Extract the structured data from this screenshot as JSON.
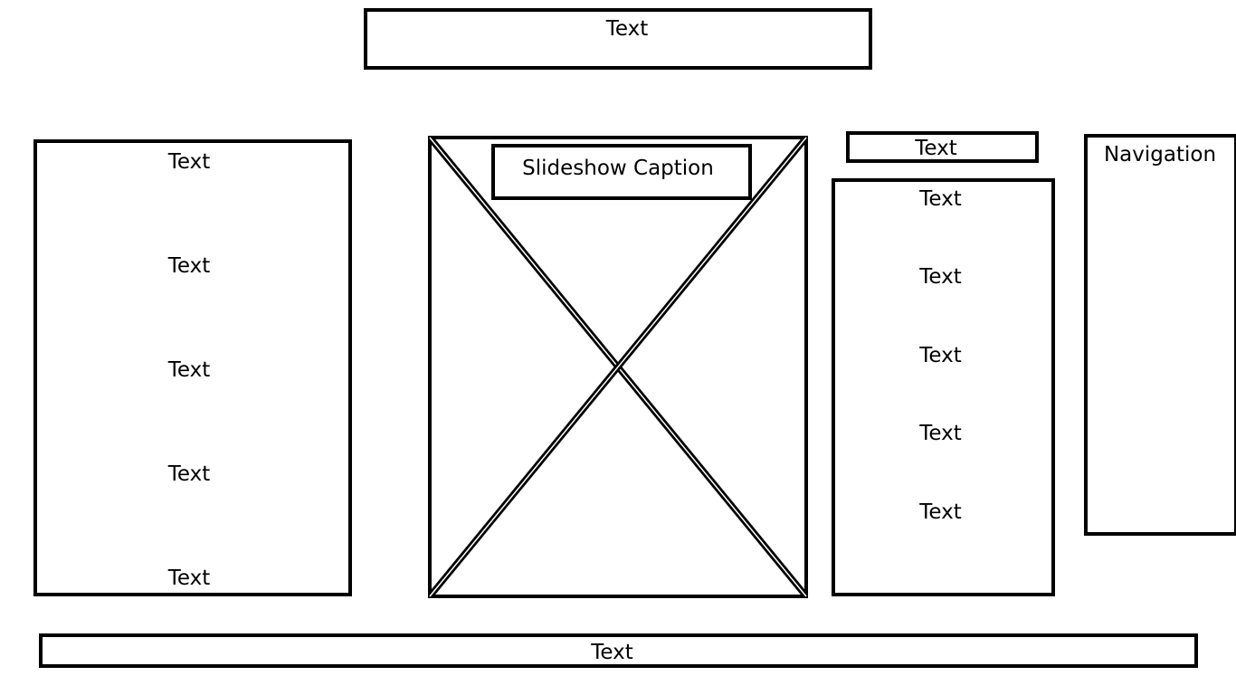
{
  "header": {
    "text": "Text"
  },
  "left_panel": {
    "items": [
      "Text",
      "Text",
      "Text",
      "Text",
      "Text"
    ]
  },
  "slideshow": {
    "caption": "Slideshow Caption"
  },
  "right_top": {
    "text": "Text"
  },
  "right_panel": {
    "items": [
      "Text",
      "Text",
      "Text",
      "Text",
      "Text"
    ]
  },
  "navigation": {
    "label": "Navigation"
  },
  "footer": {
    "text": "Text"
  }
}
